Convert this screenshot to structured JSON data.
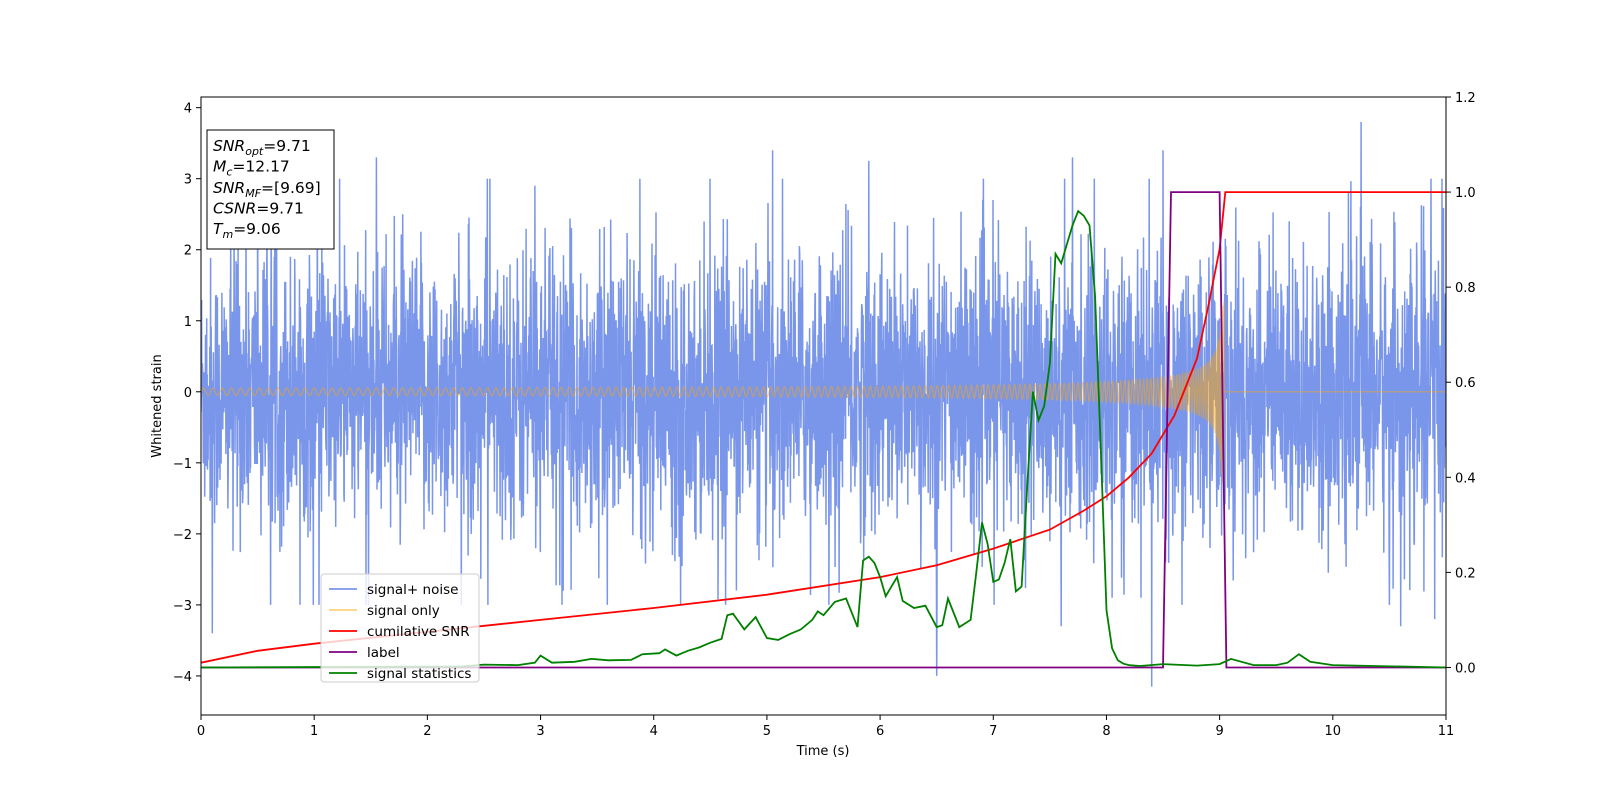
{
  "chart_data": {
    "type": "line",
    "xlabel": "Time (s)",
    "ylabel": "Whitened strain",
    "xlim": [
      0,
      11
    ],
    "ylim_left": [
      -4.55,
      4.15
    ],
    "ylim_right": [
      -0.1,
      1.2
    ],
    "x_ticks": [
      "0",
      "1",
      "2",
      "3",
      "4",
      "5",
      "6",
      "7",
      "8",
      "9",
      "10",
      "11"
    ],
    "y_ticks_left": [
      {
        "v": -4,
        "label": "−4"
      },
      {
        "v": -3,
        "label": "−3"
      },
      {
        "v": -2,
        "label": "−2"
      },
      {
        "v": -1,
        "label": "−1"
      },
      {
        "v": 0,
        "label": "0"
      },
      {
        "v": 1,
        "label": "1"
      },
      {
        "v": 2,
        "label": "2"
      },
      {
        "v": 3,
        "label": "3"
      },
      {
        "v": 4,
        "label": "4"
      }
    ],
    "y_ticks_right": [
      {
        "v": 0.0,
        "label": "0.0"
      },
      {
        "v": 0.2,
        "label": "0.2"
      },
      {
        "v": 0.4,
        "label": "0.4"
      },
      {
        "v": 0.6,
        "label": "0.6"
      },
      {
        "v": 0.8,
        "label": "0.8"
      },
      {
        "v": 1.0,
        "label": "1.0"
      },
      {
        "v": 1.2,
        "label": "1.2"
      }
    ],
    "info_box": [
      {
        "main": "SNR",
        "sub": "opt",
        "rest": "=9.71"
      },
      {
        "main": "M",
        "sub": "c",
        "rest": "=12.17"
      },
      {
        "main": "SNR",
        "sub": "MF",
        "rest": "=[9.69]"
      },
      {
        "main": "CSNR",
        "sub": "",
        "rest": "=9.71"
      },
      {
        "main": "T",
        "sub": "m",
        "rest": "=9.06"
      }
    ],
    "series": [
      {
        "name": "signal+ noise",
        "axis": "left",
        "color": "#4169e1",
        "opacity": 0.7,
        "envelope": {
          "typical_amplitude": 1.5,
          "peaks": [
            [
              0.1,
              -3.4
            ],
            [
              0.5,
              2.6
            ],
            [
              1.55,
              3.3
            ],
            [
              2.3,
              -3.0
            ],
            [
              2.95,
              2.9
            ],
            [
              3.2,
              -2.8
            ],
            [
              5.05,
              3.4
            ],
            [
              5.9,
              3.25
            ],
            [
              6.5,
              -4.0
            ],
            [
              7.6,
              -3.3
            ],
            [
              7.7,
              3.3
            ],
            [
              8.05,
              -2.9
            ],
            [
              8.4,
              -4.15
            ],
            [
              8.5,
              3.4
            ],
            [
              10.25,
              3.8
            ],
            [
              10.6,
              -3.3
            ],
            [
              10.9,
              -3.2
            ]
          ]
        }
      },
      {
        "name": "signal only",
        "axis": "left",
        "color": "#ffa500",
        "opacity": 0.5,
        "chirp": {
          "start_amplitude": 0.02,
          "end_amplitude": 1.3,
          "t_end": 9.04
        }
      },
      {
        "name": "cumilative SNR",
        "axis": "right",
        "color": "#ff0000",
        "x": [
          0,
          0.5,
          1,
          2,
          3,
          4,
          5,
          6,
          6.5,
          7,
          7.5,
          7.8,
          8,
          8.2,
          8.4,
          8.6,
          8.8,
          8.9,
          9.0,
          9.05,
          11
        ],
        "y": [
          0.01,
          0.035,
          0.05,
          0.075,
          0.1,
          0.125,
          0.153,
          0.19,
          0.215,
          0.25,
          0.29,
          0.33,
          0.36,
          0.4,
          0.45,
          0.53,
          0.65,
          0.76,
          0.88,
          1.0,
          1.0
        ]
      },
      {
        "name": "label",
        "axis": "right",
        "color": "#800080",
        "x": [
          0,
          8.5,
          8.57,
          9.0,
          9.06,
          11
        ],
        "y": [
          0,
          0,
          1,
          1,
          0,
          0
        ]
      },
      {
        "name": "signal statistics",
        "axis": "right",
        "color": "#008000",
        "x": [
          0,
          2.3,
          2.5,
          2.8,
          2.95,
          3.0,
          3.1,
          3.3,
          3.45,
          3.6,
          3.8,
          3.9,
          4.05,
          4.1,
          4.2,
          4.3,
          4.4,
          4.5,
          4.6,
          4.65,
          4.7,
          4.8,
          4.9,
          5.0,
          5.1,
          5.2,
          5.3,
          5.4,
          5.45,
          5.5,
          5.6,
          5.7,
          5.8,
          5.85,
          5.9,
          5.95,
          6.0,
          6.05,
          6.1,
          6.15,
          6.2,
          6.3,
          6.4,
          6.5,
          6.55,
          6.6,
          6.7,
          6.8,
          6.85,
          6.9,
          6.95,
          7.0,
          7.05,
          7.1,
          7.15,
          7.2,
          7.25,
          7.3,
          7.35,
          7.4,
          7.45,
          7.5,
          7.55,
          7.6,
          7.7,
          7.75,
          7.8,
          7.85,
          7.9,
          7.95,
          8.0,
          8.05,
          8.1,
          8.15,
          8.2,
          8.3,
          8.5,
          8.8,
          9.0,
          9.1,
          9.3,
          9.5,
          9.6,
          9.7,
          9.8,
          10.0,
          11.0
        ],
        "y": [
          0.0,
          0.002,
          0.006,
          0.005,
          0.01,
          0.025,
          0.01,
          0.012,
          0.018,
          0.015,
          0.016,
          0.028,
          0.03,
          0.038,
          0.025,
          0.035,
          0.042,
          0.052,
          0.06,
          0.11,
          0.113,
          0.08,
          0.106,
          0.062,
          0.058,
          0.07,
          0.08,
          0.1,
          0.118,
          0.11,
          0.138,
          0.145,
          0.085,
          0.225,
          0.233,
          0.22,
          0.19,
          0.15,
          0.17,
          0.19,
          0.14,
          0.125,
          0.13,
          0.085,
          0.089,
          0.145,
          0.085,
          0.1,
          0.2,
          0.305,
          0.26,
          0.18,
          0.185,
          0.22,
          0.27,
          0.16,
          0.17,
          0.38,
          0.58,
          0.52,
          0.55,
          0.64,
          0.87,
          0.85,
          0.93,
          0.96,
          0.95,
          0.93,
          0.78,
          0.46,
          0.12,
          0.04,
          0.015,
          0.008,
          0.005,
          0.003,
          0.007,
          0.004,
          0.007,
          0.018,
          0.005,
          0.005,
          0.01,
          0.028,
          0.012,
          0.005,
          0.0
        ]
      }
    ],
    "legend": {
      "placement": "lower-left"
    }
  }
}
